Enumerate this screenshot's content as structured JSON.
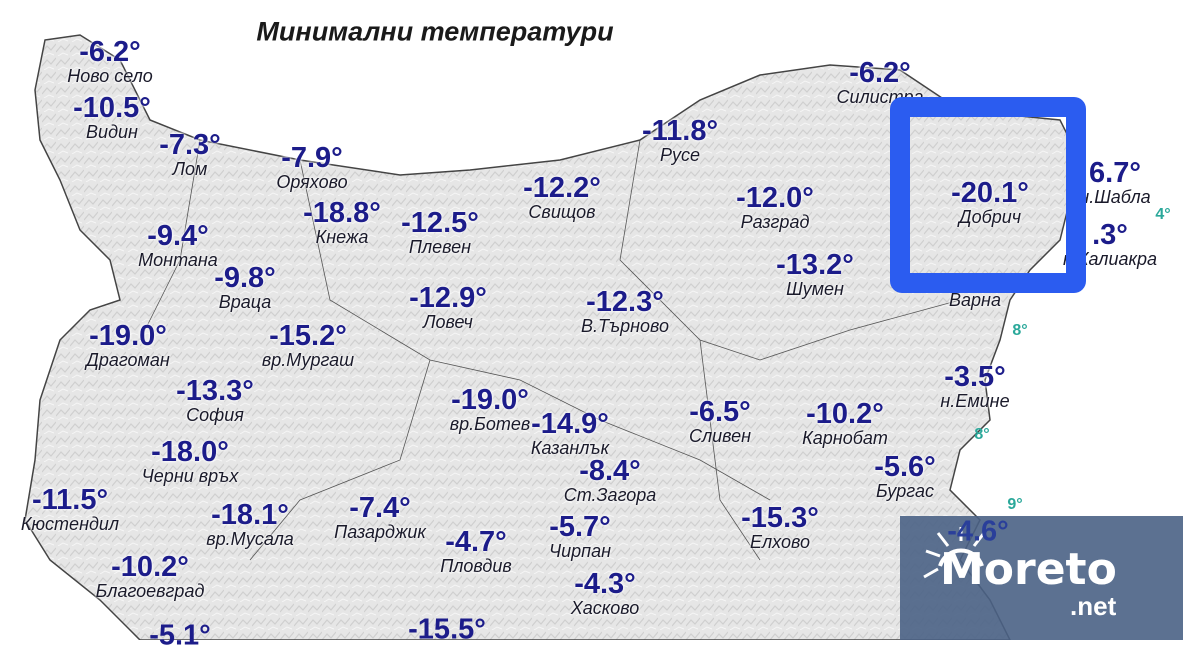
{
  "title": "Минимални температури",
  "stations": [
    {
      "name": "Ново село",
      "value": "-6.2°"
    },
    {
      "name": "Видин",
      "value": "-10.5°"
    },
    {
      "name": "Лом",
      "value": "-7.3°"
    },
    {
      "name": "Оряхово",
      "value": "-7.9°"
    },
    {
      "name": "Кнежа",
      "value": "-18.8°"
    },
    {
      "name": "Плевен",
      "value": "-12.5°"
    },
    {
      "name": "Свищов",
      "value": "-12.2°"
    },
    {
      "name": "Русе",
      "value": "-11.8°"
    },
    {
      "name": "Силистра",
      "value": "-6.2°"
    },
    {
      "name": "Разград",
      "value": "-12.0°"
    },
    {
      "name": "Шумен",
      "value": "-13.2°"
    },
    {
      "name": "Монтана",
      "value": "-9.4°"
    },
    {
      "name": "Враца",
      "value": "-9.8°"
    },
    {
      "name": "Драгоман",
      "value": "-19.0°"
    },
    {
      "name": "вр.Мургаш",
      "value": "-15.2°"
    },
    {
      "name": "Ловеч",
      "value": "-12.9°"
    },
    {
      "name": "В.Търново",
      "value": "-12.3°"
    },
    {
      "name": "София",
      "value": "-13.3°"
    },
    {
      "name": "Черни връх",
      "value": "-18.0°"
    },
    {
      "name": "вр.Ботев",
      "value": "-19.0°"
    },
    {
      "name": "Казанлък",
      "value": "-14.9°"
    },
    {
      "name": "Сливен",
      "value": "-6.5°"
    },
    {
      "name": "Карнобат",
      "value": "-10.2°"
    },
    {
      "name": "н.Емине",
      "value": "-3.5°"
    },
    {
      "name": "Бургас",
      "value": "-5.6°"
    },
    {
      "name": "Ст.Загора",
      "value": "-8.4°"
    },
    {
      "name": "Кюстендил",
      "value": "-11.5°"
    },
    {
      "name": "вр.Мусала",
      "value": "-18.1°"
    },
    {
      "name": "Пазарджик",
      "value": "-7.4°"
    },
    {
      "name": "Пловдив",
      "value": "-4.7°"
    },
    {
      "name": "Чирпан",
      "value": "-5.7°"
    },
    {
      "name": "Елхово",
      "value": "-15.3°"
    },
    {
      "name": "Хасково",
      "value": "-4.3°"
    },
    {
      "name": "Благоевград",
      "value": "-10.2°"
    },
    {
      "name": "Добрич",
      "value": "-20.1°"
    },
    {
      "name": "н.Шабла",
      "value": "6.7°"
    },
    {
      "name": "н.Калиакра",
      "value": ".3°"
    },
    {
      "name": "Варна",
      "value": ""
    }
  ],
  "partial_values": [
    "-4.6°",
    "-5.1°",
    "-15.5°"
  ],
  "sea_temperatures": [
    "4°",
    "8°",
    "8°",
    "9°"
  ],
  "highlight_color": "#2b5cf0",
  "value_color": "#1c1c8a",
  "sea_temp_color": "#2aa89a",
  "logo": {
    "text": "Moreto",
    "suffix": ".net",
    "background": "#4a6285"
  }
}
